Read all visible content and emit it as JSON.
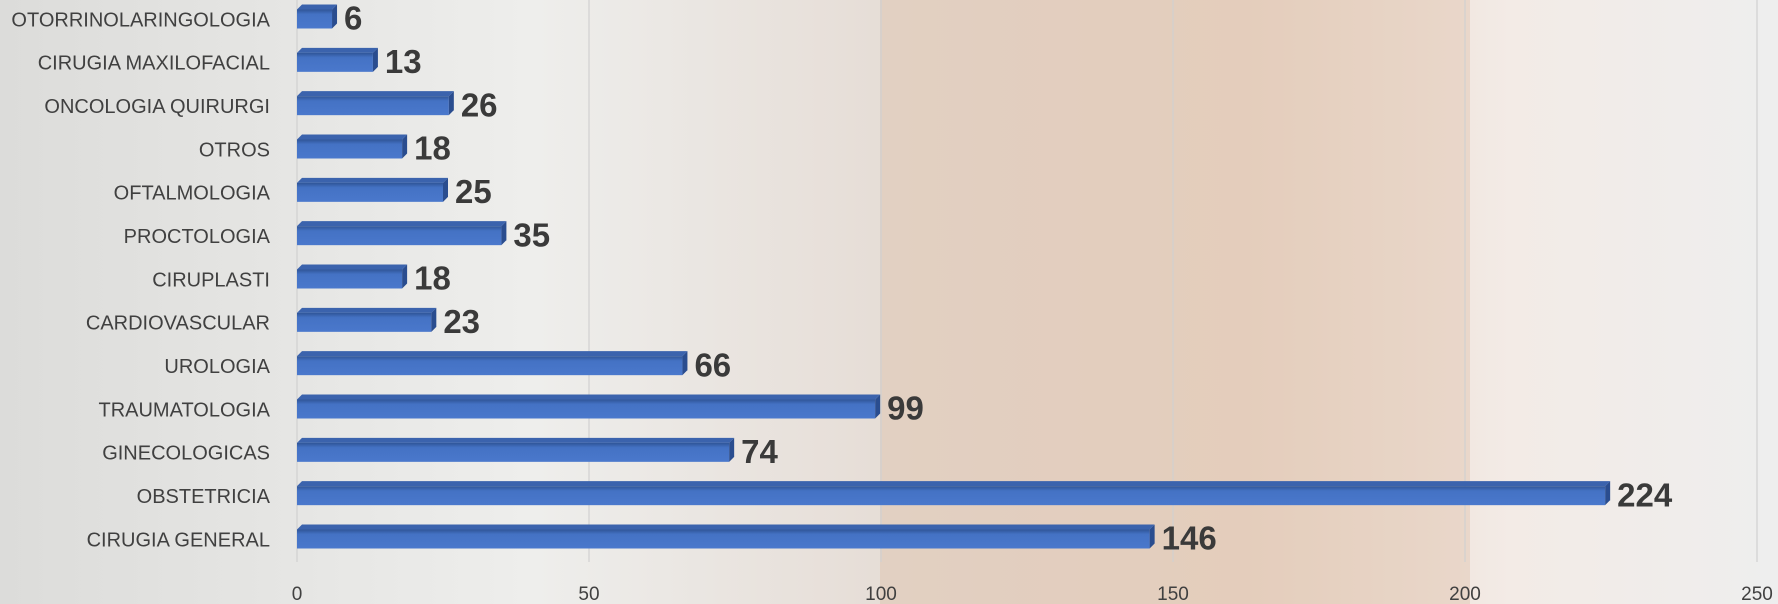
{
  "chart_data": {
    "type": "bar",
    "orientation": "horizontal",
    "categories": [
      "OTORRINOLARINGOLOGIA",
      "CIRUGIA MAXILOFACIAL",
      "ONCOLOGIA QUIRURGI",
      "OTROS",
      "OFTALMOLOGIA",
      "PROCTOLOGIA",
      "CIRUPLASTI",
      "CARDIOVASCULAR",
      "UROLOGIA",
      "TRAUMATOLOGIA",
      "GINECOLOGICAS",
      "OBSTETRICIA",
      "CIRUGIA GENERAL"
    ],
    "values": [
      6,
      13,
      26,
      18,
      25,
      35,
      18,
      23,
      66,
      99,
      74,
      224,
      146
    ],
    "color": "#4472c4",
    "xlim": [
      0,
      250
    ],
    "xticks": [
      0,
      50,
      100,
      150,
      200,
      250
    ],
    "grid": true
  }
}
